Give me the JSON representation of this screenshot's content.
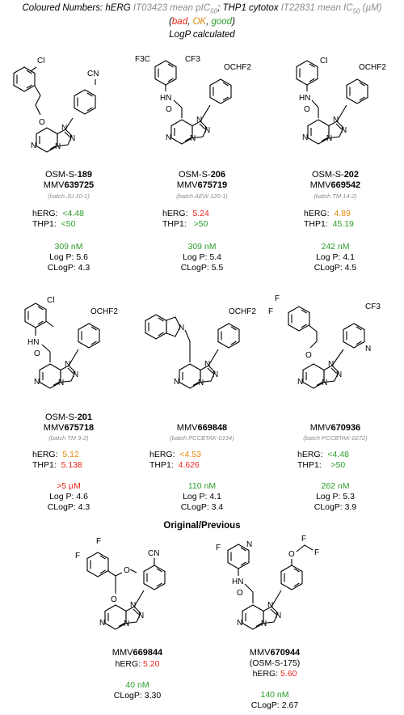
{
  "legend": {
    "line1_a": "Coloured Numbers: hERG ",
    "line1_b": "IT03423 mean pIC",
    "line1_b_sub": "50",
    "line1_c": "; THP1 cytotox ",
    "line1_d": "IT22831 mean IC",
    "line1_d_sub": "50",
    "line1_e": " (µM)",
    "open": "(",
    "bad": "bad",
    "comma1": ", ",
    "ok": "OK",
    "comma2": ", ",
    "good": "good",
    "close": ")",
    "line3": "LogP calculated"
  },
  "colors": {
    "bad": "#e8261c",
    "ok": "#e08a0c",
    "good": "#2a9d2a",
    "batch": "#8c8c8c"
  },
  "compounds": [
    {
      "osm_prefix": "OSM-S-",
      "osm_num": "189",
      "mmv_prefix": "MMV",
      "mmv_num": "639725",
      "batch": "(batch JU 10-1)",
      "herg_label": "hERG:",
      "herg": "<4.48",
      "herg_class": "good",
      "thp1_label": "THP1:",
      "thp1": "<50",
      "thp1_class": "good",
      "potency": "309 nM",
      "potency_class": "good",
      "logp": "Log P: 5.6",
      "clogp": "CLogP: 4.3",
      "labels": {
        "cl": "Cl",
        "cn": "CN",
        "o": "O",
        "n1": "N",
        "n2": "N",
        "n3": "N",
        "n4": "N"
      }
    },
    {
      "osm_prefix": "OSM-S-",
      "osm_num": "206",
      "mmv_prefix": "MMV",
      "mmv_num": "675719",
      "batch": "(batch AEW 120-1)",
      "herg_label": "hERG:",
      "herg": "5.24",
      "herg_class": "bad",
      "thp1_label": "THP1:",
      "thp1": ">50",
      "thp1_class": "good",
      "potency": "309 nM",
      "potency_class": "good",
      "logp": "Log P: 5.4",
      "clogp": "CLogP: 5.5",
      "labels": {
        "cf3a": "F3C",
        "cf3b": "CF3",
        "ochf2": "OCHF2",
        "hn": "HN",
        "o": "O",
        "n1": "N",
        "n2": "N",
        "n3": "N",
        "n4": "N"
      }
    },
    {
      "osm_prefix": "OSM-S-",
      "osm_num": "202",
      "mmv_prefix": "MMV",
      "mmv_num": "669542",
      "batch": "(batch TM 14-2)",
      "herg_label": "hERG:",
      "herg": "4.89",
      "herg_class": "ok",
      "thp1_label": "THP1:",
      "thp1": "45.19",
      "thp1_class": "good",
      "potency": "242 nM",
      "potency_class": "good",
      "logp": "Log P: 4.1",
      "clogp": "CLogP: 4.5",
      "labels": {
        "cl": "Cl",
        "ochf2": "OCHF2",
        "hn": "HN",
        "o": "O",
        "n1": "N",
        "n2": "N",
        "n3": "N",
        "n4": "N"
      }
    },
    {
      "osm_prefix": "OSM-S-",
      "osm_num": "201",
      "mmv_prefix": "MMV",
      "mmv_num": "675718",
      "batch": "(batch TM 9-2)",
      "herg_label": "hERG:",
      "herg": "5.12",
      "herg_class": "ok",
      "thp1_label": "THP1:",
      "thp1": "5.138",
      "thp1_class": "bad",
      "potency": ">5 µM",
      "potency_class": "bad",
      "logp": "Log P: 4.6",
      "clogp": "CLogP: 4.3",
      "labels": {
        "cl": "Cl",
        "ochf2": "OCHF2",
        "hn": "HN",
        "o": "O",
        "n1": "N",
        "n2": "N",
        "n3": "N",
        "n4": "N"
      }
    },
    {
      "osm_prefix": "",
      "osm_num": "",
      "mmv_prefix": "MMV",
      "mmv_num": "669848",
      "batch": "(batch PCCBTAK-0194)",
      "herg_label": "hERG:",
      "herg": "<4.53",
      "herg_class": "ok",
      "thp1_label": "THP1:",
      "thp1": "4.626",
      "thp1_class": "bad",
      "potency": "110 nM",
      "potency_class": "good",
      "logp": "Log P: 4.1",
      "clogp": "CLogP: 3.4",
      "labels": {
        "ochf2": "OCHF2",
        "n0": "N",
        "n1": "N",
        "n2": "N",
        "n3": "N",
        "n4": "N"
      }
    },
    {
      "osm_prefix": "",
      "osm_num": "",
      "mmv_prefix": "MMV",
      "mmv_num": "670936",
      "batch": "(batch PCCBTAK-0272)",
      "herg_label": "hERG:",
      "herg": "<4.48",
      "herg_class": "good",
      "thp1_label": "THP1:",
      "thp1": ">50",
      "thp1_class": "good",
      "potency": "262 nM",
      "potency_class": "good",
      "logp": "Log P: 5.3",
      "clogp": "CLogP: 3.9",
      "labels": {
        "f1": "F",
        "f2": "F",
        "cf3": "CF3",
        "npy": "N",
        "o": "O",
        "n1": "N",
        "n2": "N",
        "n3": "N",
        "n4": "N"
      }
    }
  ],
  "section_title": "Original/Previous",
  "previous": [
    {
      "mmv_prefix": "MMV",
      "mmv_num": "669844",
      "sub": "",
      "herg_label": "hERG:",
      "herg": "5.20",
      "herg_class": "bad",
      "potency": "40 nM",
      "potency_class": "good",
      "clogp": "CLogP: 3.30",
      "labels": {
        "f1": "F",
        "f2": "F",
        "cn": "CN",
        "ome": "O",
        "o": "O",
        "n1": "N",
        "n2": "N",
        "n3": "N",
        "n4": "N"
      }
    },
    {
      "mmv_prefix": "MMV",
      "mmv_num": "670944",
      "sub": "(OSM-S-175)",
      "herg_label": "hERG:",
      "herg": "5.60",
      "herg_class": "bad",
      "potency": "140 nM",
      "potency_class": "good",
      "clogp": "CLogP: 2.67",
      "labels": {
        "f": "F",
        "npy": "N",
        "hn": "HN",
        "o": "O",
        "och": "O",
        "fa": "F",
        "fb": "F",
        "n1": "N",
        "n2": "N",
        "n3": "N",
        "n4": "N"
      }
    }
  ]
}
